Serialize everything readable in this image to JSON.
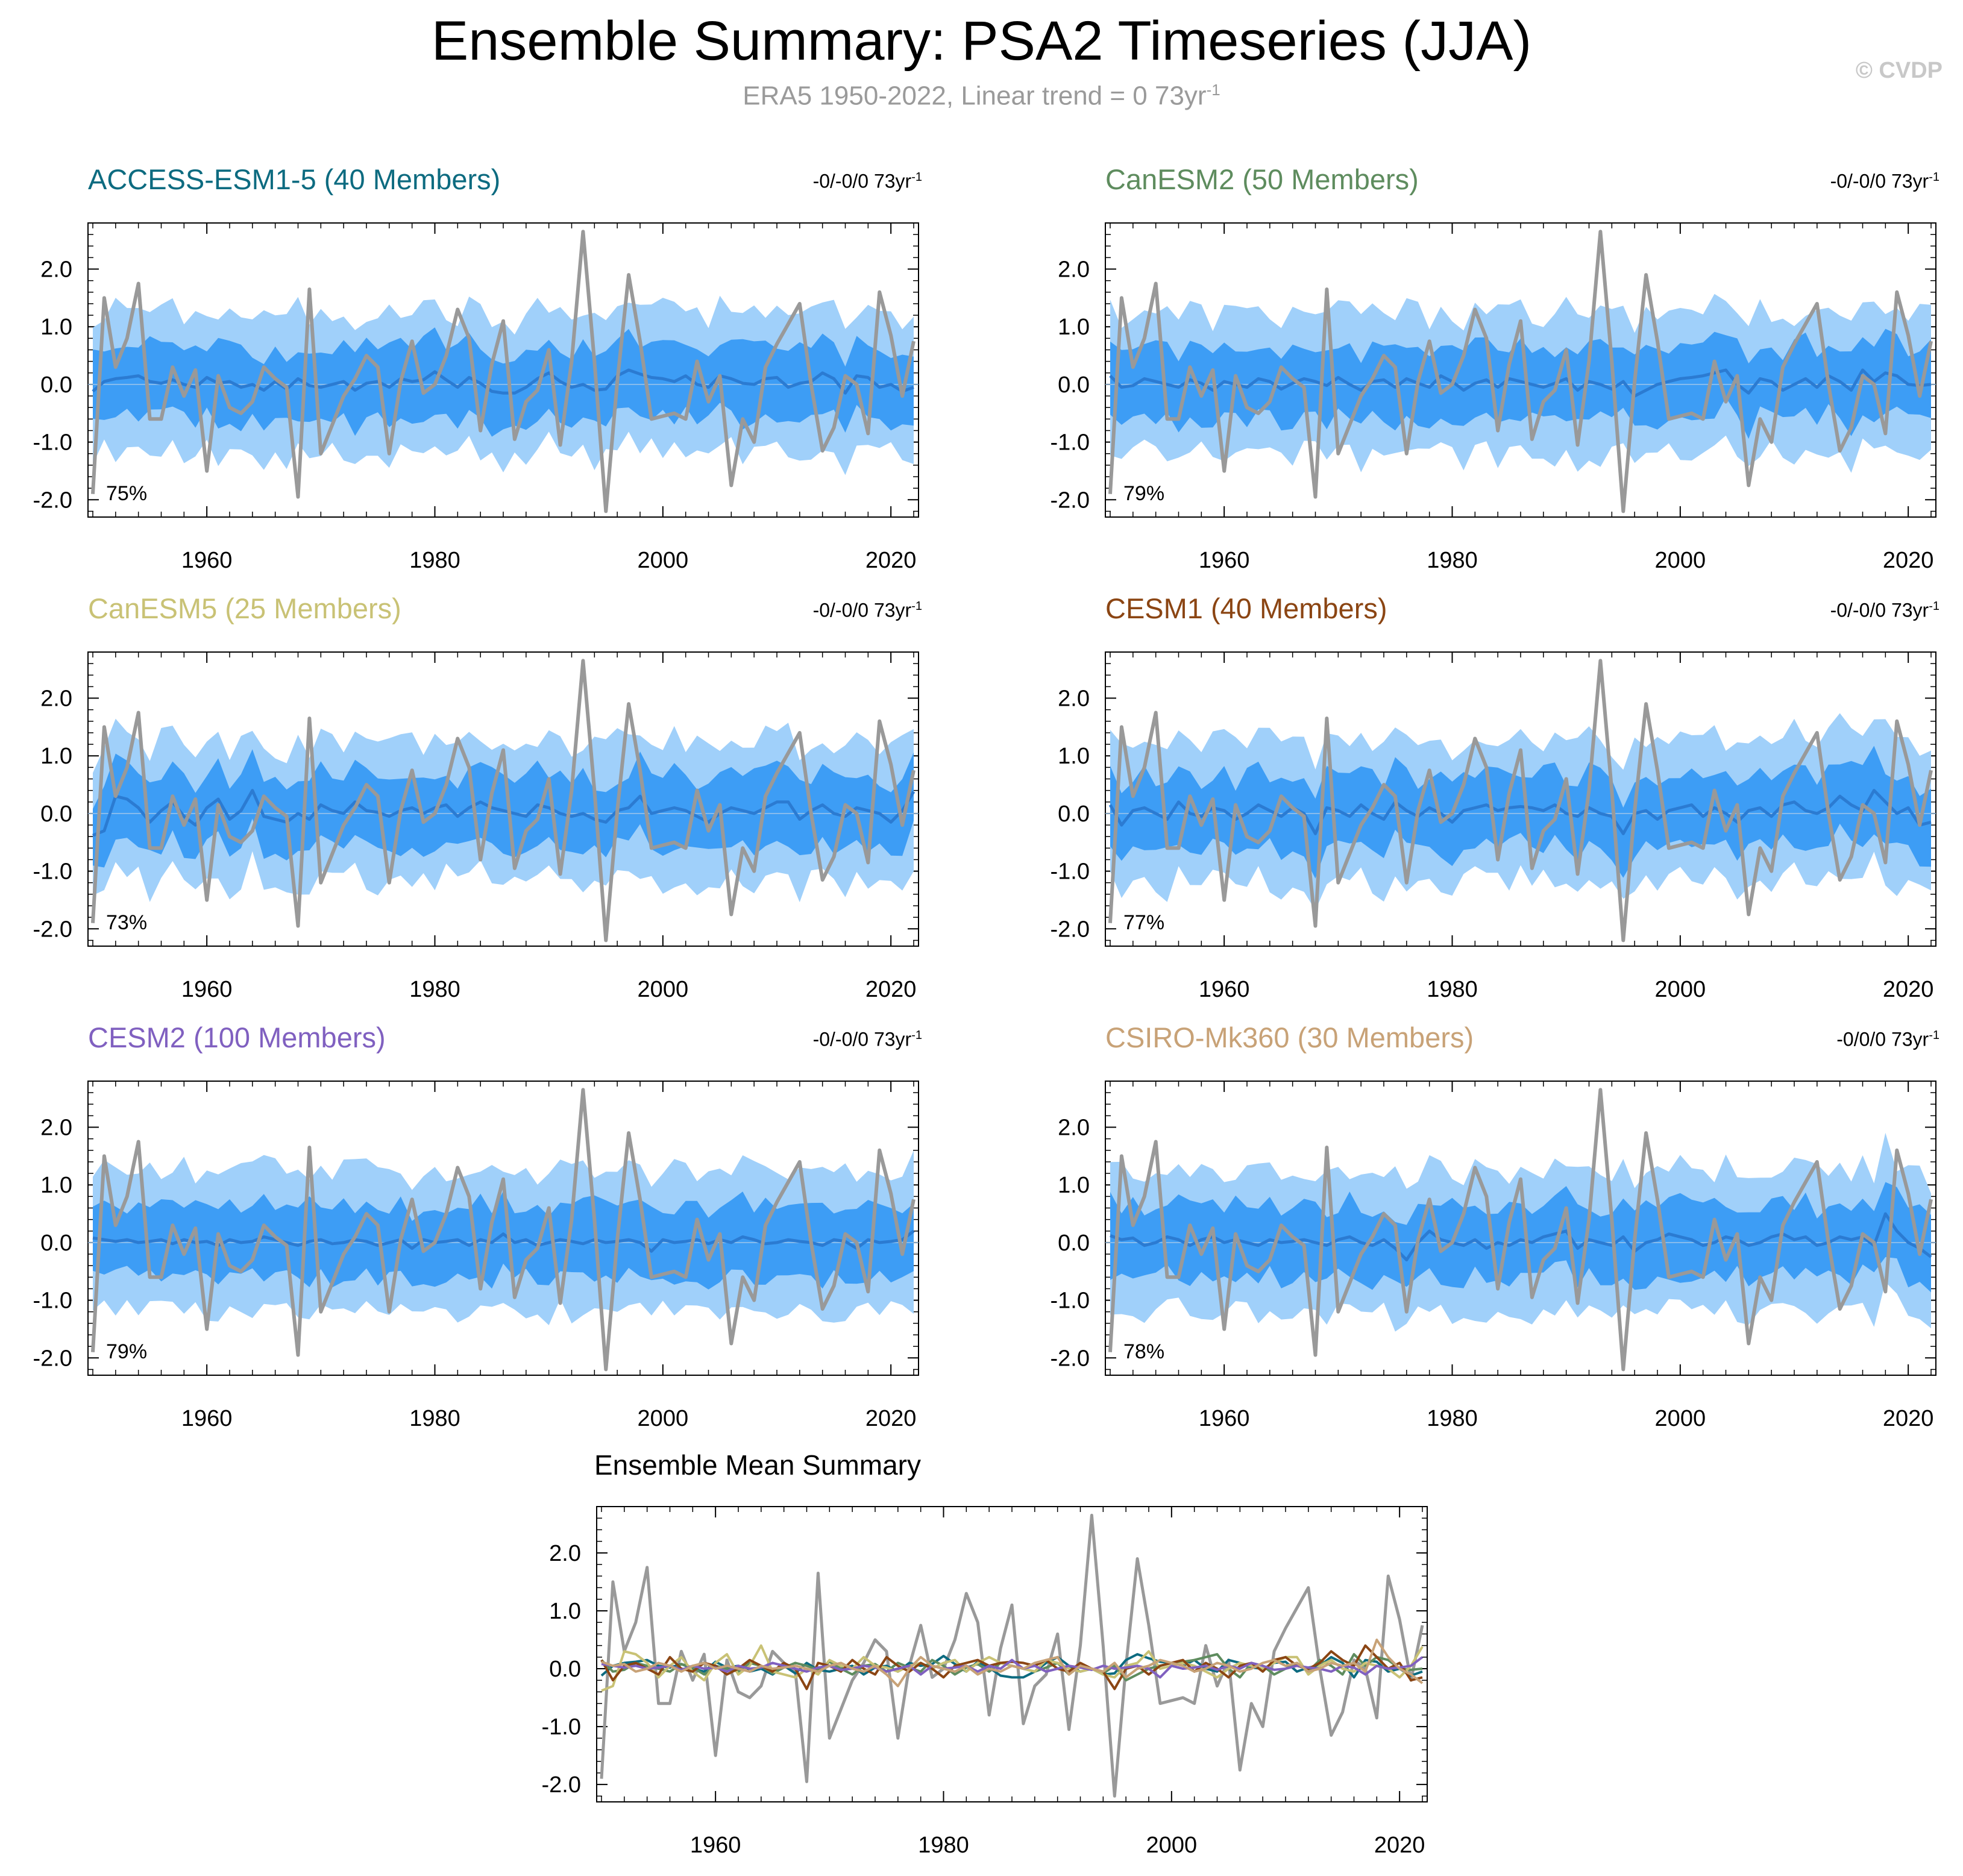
{
  "title": "Ensemble Summary: PSA2 Timeseries (JJA)",
  "subtitle_text": "ERA5 1950-2022, Linear trend = 0 73yr",
  "subtitle_sup": "-1",
  "credit": "© CVDP",
  "colors": {
    "band_outer": "#a0d0fa",
    "band_inner": "#3d9df5",
    "ens_mean": "#2b7bd2",
    "observed": "#999999",
    "zero_line": "#9fc6ea"
  },
  "chart_data": [
    {
      "type": "line",
      "title": "ACCESS-ESM1-5 (40 Members)",
      "title_color": "#0d6b80",
      "trend_text": "-0/-0/0 73yr",
      "trend_sup": "-1",
      "percent_label": "75%",
      "x_range": [
        1950,
        2022
      ],
      "ylim": [
        -2.3,
        2.8
      ],
      "yticks": [
        "2.0",
        "1.0",
        "0.0",
        "-1.0",
        "-2.0"
      ],
      "xticks": [
        "1960",
        "1980",
        "2000",
        "2020"
      ],
      "series": [
        {
          "name": "ensemble mean",
          "values": [
            -0.12,
            0.05,
            0.1,
            0.12,
            0.15,
            0.05,
            0.02,
            0.08,
            0.0,
            -0.05,
            0.12,
            0.02,
            0.05,
            -0.05,
            0.0,
            -0.1,
            0.05,
            -0.08,
            0.1,
            -0.02,
            -0.05,
            0.0,
            0.05,
            -0.1,
            0.02,
            0.05,
            -0.05,
            0.1,
            0.05,
            0.08,
            0.22,
            0.08,
            -0.05,
            0.12,
            0.02,
            -0.12,
            -0.15,
            -0.15,
            -0.05,
            0.1,
            0.2,
            0.05,
            -0.05,
            0.0,
            -0.1,
            -0.08,
            0.15,
            0.25,
            0.18,
            0.12,
            0.1,
            0.05,
            0.15,
            0.0,
            -0.05,
            0.15,
            0.1,
            0.02,
            0.0,
            0.1,
            0.12,
            -0.05,
            0.02,
            0.05,
            0.2,
            0.1,
            -0.15,
            0.15,
            0.12,
            -0.05,
            0.0,
            -0.12,
            -0.05
          ]
        }
      ]
    },
    {
      "type": "line",
      "title": "CanESM2 (50 Members)",
      "title_color": "#5e8c5e",
      "trend_text": "-0/-0/0 73yr",
      "trend_sup": "-1",
      "percent_label": "79%",
      "x_range": [
        1950,
        2022
      ],
      "ylim": [
        -2.3,
        2.8
      ],
      "yticks": [
        "2.0",
        "1.0",
        "0.0",
        "-1.0",
        "-2.0"
      ],
      "xticks": [
        "1960",
        "1980",
        "2000",
        "2020"
      ],
      "series": [
        {
          "name": "ensemble mean",
          "values": [
            0.15,
            -0.05,
            -0.02,
            0.1,
            0.05,
            0.0,
            -0.05,
            0.08,
            0.02,
            -0.1,
            0.05,
            0.0,
            -0.05,
            0.1,
            0.05,
            -0.08,
            0.02,
            0.1,
            0.05,
            -0.02,
            0.12,
            0.0,
            -0.1,
            0.05,
            0.08,
            -0.05,
            0.1,
            0.02,
            -0.05,
            0.15,
            0.05,
            -0.1,
            0.02,
            0.08,
            -0.05,
            0.1,
            0.05,
            0.0,
            -0.05,
            0.02,
            0.1,
            -0.1,
            0.05,
            0.0,
            -0.08,
            0.05,
            -0.2,
            -0.1,
            0.0,
            0.05,
            0.1,
            0.12,
            0.15,
            0.2,
            0.25,
            0.0,
            -0.15,
            0.1,
            0.05,
            -0.1,
            0.0,
            0.1,
            -0.05,
            0.15,
            0.05,
            -0.1,
            0.25,
            0.05,
            0.2,
            0.15,
            0.0,
            -0.02,
            0.0
          ]
        }
      ]
    },
    {
      "type": "line",
      "title": "CanESM5 (25 Members)",
      "title_color": "#c9c275",
      "trend_text": "-0/-0/0 73yr",
      "trend_sup": "-1",
      "percent_label": "73%",
      "x_range": [
        1950,
        2022
      ],
      "ylim": [
        -2.3,
        2.8
      ],
      "yticks": [
        "2.0",
        "1.0",
        "0.0",
        "-1.0",
        "-2.0"
      ],
      "xticks": [
        "1960",
        "1980",
        "2000",
        "2020"
      ],
      "series": [
        {
          "name": "ensemble mean",
          "values": [
            -0.38,
            -0.3,
            0.3,
            0.25,
            0.1,
            -0.15,
            0.05,
            0.2,
            -0.05,
            -0.2,
            0.1,
            0.25,
            -0.1,
            0.05,
            0.4,
            -0.05,
            -0.1,
            -0.15,
            0.0,
            -0.1,
            0.15,
            0.05,
            0.0,
            0.2,
            0.05,
            0.02,
            -0.05,
            0.05,
            0.1,
            0.0,
            0.1,
            0.15,
            -0.05,
            0.1,
            0.2,
            0.1,
            0.05,
            0.0,
            -0.05,
            0.15,
            0.1,
            0.0,
            -0.05,
            0.0,
            -0.1,
            -0.15,
            0.05,
            0.1,
            0.3,
            0.0,
            0.05,
            0.1,
            0.05,
            -0.05,
            -0.15,
            0.0,
            0.1,
            0.05,
            0.0,
            0.1,
            0.2,
            0.2,
            -0.1,
            0.05,
            0.15,
            0.0,
            -0.05,
            0.1,
            0.05,
            0.0,
            -0.15,
            0.05,
            0.38
          ]
        }
      ]
    },
    {
      "type": "line",
      "title": "CESM1 (40 Members)",
      "title_color": "#8b4513",
      "trend_text": "-0/-0/0 73yr",
      "trend_sup": "-1",
      "percent_label": "77%",
      "x_range": [
        1950,
        2022
      ],
      "ylim": [
        -2.3,
        2.8
      ],
      "yticks": [
        "2.0",
        "1.0",
        "0.0",
        "-1.0",
        "-2.0"
      ],
      "xticks": [
        "1960",
        "1980",
        "2000",
        "2020"
      ],
      "series": [
        {
          "name": "ensemble mean",
          "values": [
            0.15,
            -0.2,
            0.05,
            0.1,
            0.0,
            -0.1,
            0.2,
            0.0,
            -0.05,
            0.1,
            0.05,
            -0.1,
            0.0,
            0.15,
            0.05,
            -0.05,
            0.1,
            0.0,
            -0.35,
            0.1,
            0.05,
            -0.05,
            0.15,
            0.0,
            -0.1,
            0.2,
            0.05,
            -0.05,
            0.1,
            0.0,
            -0.15,
            0.05,
            0.1,
            0.15,
            0.05,
            0.1,
            0.12,
            0.1,
            0.05,
            0.15,
            0.0,
            -0.05,
            0.1,
            0.0,
            -0.05,
            -0.35,
            0.0,
            0.05,
            -0.1,
            0.05,
            0.1,
            0.15,
            -0.05,
            0.1,
            0.0,
            -0.15,
            0.05,
            0.1,
            -0.05,
            0.15,
            0.2,
            0.05,
            0.0,
            0.1,
            0.3,
            0.15,
            0.05,
            0.4,
            0.2,
            0.0,
            0.1,
            -0.2,
            -0.15
          ]
        }
      ]
    },
    {
      "type": "line",
      "title": "CESM2 (100 Members)",
      "title_color": "#8060c0",
      "trend_text": "-0/-0/0 73yr",
      "trend_sup": "-1",
      "percent_label": "79%",
      "x_range": [
        1950,
        2022
      ],
      "ylim": [
        -2.3,
        2.8
      ],
      "yticks": [
        "2.0",
        "1.0",
        "0.0",
        "-1.0",
        "-2.0"
      ],
      "xticks": [
        "1960",
        "1980",
        "2000",
        "2020"
      ],
      "series": [
        {
          "name": "ensemble mean",
          "values": [
            0.08,
            0.05,
            0.02,
            0.05,
            0.0,
            0.02,
            0.05,
            -0.02,
            0.05,
            0.0,
            0.02,
            -0.05,
            0.05,
            0.0,
            0.02,
            0.1,
            0.05,
            0.0,
            -0.05,
            0.02,
            0.05,
            -0.02,
            0.0,
            0.05,
            0.02,
            -0.05,
            0.0,
            0.05,
            -0.1,
            0.05,
            0.0,
            0.02,
            0.05,
            -0.05,
            0.05,
            0.0,
            0.15,
            0.0,
            0.05,
            -0.05,
            0.0,
            0.05,
            0.02,
            -0.02,
            0.05,
            0.0,
            0.02,
            0.05,
            0.0,
            -0.15,
            0.05,
            0.0,
            0.02,
            0.05,
            -0.02,
            0.05,
            0.0,
            0.1,
            0.05,
            -0.02,
            0.0,
            0.05,
            0.02,
            0.0,
            -0.05,
            0.05,
            0.02,
            -0.1,
            0.05,
            0.0,
            0.02,
            0.05,
            0.2
          ]
        }
      ]
    },
    {
      "type": "line",
      "title": "CSIRO-Mk360 (30 Members)",
      "title_color": "#c8a277",
      "trend_text": "-0/0/0 73yr",
      "trend_sup": "-1",
      "percent_label": "78%",
      "x_range": [
        1950,
        2022
      ],
      "ylim": [
        -2.3,
        2.8
      ],
      "yticks": [
        "2.0",
        "1.0",
        "0.0",
        "-1.0",
        "-2.0"
      ],
      "xticks": [
        "1960",
        "1980",
        "2000",
        "2020"
      ],
      "series": [
        {
          "name": "ensemble mean",
          "values": [
            0.12,
            0.05,
            0.08,
            -0.05,
            0.0,
            0.1,
            0.05,
            -0.05,
            0.05,
            0.1,
            0.0,
            0.05,
            0.0,
            -0.05,
            0.05,
            0.0,
            0.02,
            0.05,
            0.0,
            -0.05,
            0.05,
            0.1,
            0.0,
            -0.05,
            0.05,
            -0.1,
            -0.3,
            0.0,
            0.2,
            0.05,
            0.0,
            -0.05,
            0.05,
            -0.1,
            0.0,
            -0.05,
            0.05,
            0.0,
            0.1,
            0.15,
            0.2,
            -0.1,
            0.05,
            0.0,
            -0.05,
            0.1,
            -0.15,
            0.0,
            0.05,
            0.15,
            0.1,
            0.05,
            -0.05,
            0.0,
            0.1,
            0.05,
            -0.05,
            0.0,
            0.1,
            0.15,
            0.05,
            0.1,
            -0.05,
            0.0,
            0.1,
            0.05,
            0.1,
            -0.05,
            0.5,
            0.2,
            0.0,
            -0.1,
            -0.25
          ]
        }
      ]
    },
    {
      "type": "line",
      "title": "Ensemble Mean Summary",
      "x_range": [
        1950,
        2022
      ],
      "ylim": [
        -2.3,
        2.8
      ],
      "yticks": [
        "2.0",
        "1.0",
        "0.0",
        "-1.0",
        "-2.0"
      ],
      "xticks": [
        "1960",
        "1980",
        "2000",
        "2020"
      ],
      "series": [
        {
          "name": "ERA5",
          "color": "#999999",
          "values": [
            -1.9,
            1.5,
            0.3,
            0.8,
            1.75,
            -0.6,
            -0.6,
            0.3,
            -0.2,
            0.25,
            -1.5,
            0.15,
            -0.4,
            -0.5,
            -0.3,
            0.3,
            0.1,
            -0.05,
            -1.95,
            1.65,
            -1.2,
            -0.7,
            -0.2,
            0.1,
            0.5,
            0.3,
            -1.2,
            0.05,
            0.75,
            -0.15,
            0.0,
            0.5,
            1.3,
            0.8,
            -0.8,
            0.35,
            1.1,
            -0.95,
            -0.3,
            -0.1,
            0.6,
            -1.05,
            0.4,
            2.65,
            0.4,
            -2.2,
            0.05,
            1.9,
            0.75,
            -0.6,
            -0.55,
            -0.5,
            -0.6,
            0.4,
            -0.3,
            0.15,
            -1.75,
            -0.6,
            -1.0,
            0.3,
            0.7,
            1.05,
            1.4,
            0.0,
            -1.15,
            -0.75,
            0.15,
            0.0,
            -0.85,
            1.6,
            0.85,
            -0.2,
            0.75
          ]
        },
        {
          "name": "ACCESS-ESM1-5",
          "color": "#0d6b80"
        },
        {
          "name": "CanESM2",
          "color": "#5e8c5e"
        },
        {
          "name": "CanESM5",
          "color": "#c9c275"
        },
        {
          "name": "CESM1",
          "color": "#8b4513"
        },
        {
          "name": "CESM2",
          "color": "#8060c0"
        },
        {
          "name": "CSIRO-Mk360",
          "color": "#c8a277"
        }
      ]
    }
  ]
}
